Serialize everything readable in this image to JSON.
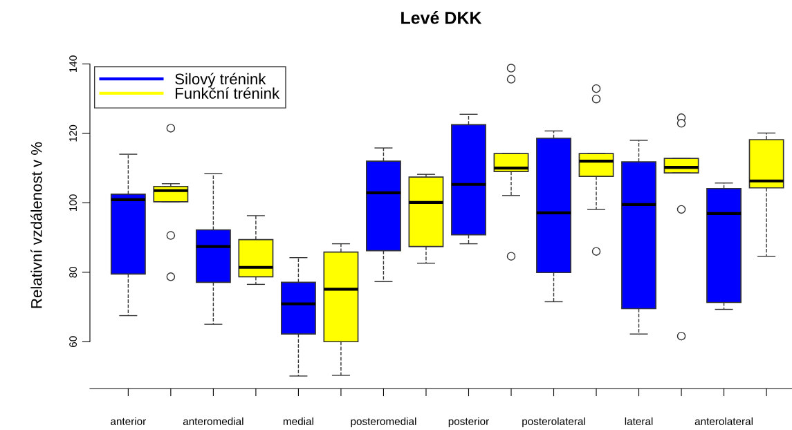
{
  "chart_data": {
    "type": "box",
    "title": "Levé DKK",
    "ylabel": "Relativní vzdálenost v %",
    "categories": [
      "anterior",
      null,
      "anteromedial",
      null,
      "medial",
      null,
      "posteromedial",
      null,
      "posterior",
      null,
      "posterolateral",
      null,
      "lateral",
      null,
      "anterolateral",
      null
    ],
    "ylim": [
      46.5,
      140.5
    ],
    "yticks": [
      60,
      80,
      100,
      120,
      140
    ],
    "grid": false,
    "legend": "top left",
    "line_style": "dashed",
    "series": [
      {
        "name": "Silový trénink",
        "color": "#0000ff",
        "boxes": [
          {
            "low": 67.5,
            "q1": 79.5,
            "median": 100.9,
            "q3": 102.5,
            "high": 114.0
          },
          null,
          {
            "low": 65.0,
            "q1": 77.1,
            "median": 87.4,
            "q3": 92.2,
            "high": 108.4
          },
          null,
          {
            "low": 50.1,
            "q1": 62.2,
            "median": 70.9,
            "q3": 77.1,
            "high": 84.2
          },
          null,
          {
            "low": 77.3,
            "q1": 86.2,
            "median": 102.9,
            "q3": 112.0,
            "high": 115.8
          },
          null,
          {
            "low": 88.2,
            "q1": 90.8,
            "median": 105.3,
            "q3": 122.5,
            "high": 125.5
          },
          null,
          {
            "low": 71.5,
            "q1": 79.9,
            "median": 97.1,
            "q3": 118.6,
            "high": 120.7
          },
          null,
          {
            "low": 62.2,
            "q1": 69.5,
            "median": 99.5,
            "q3": 111.8,
            "high": 118.0
          },
          null,
          {
            "low": 69.3,
            "q1": 71.3,
            "median": 96.9,
            "q3": 104.1,
            "high": 105.7
          },
          null
        ]
      },
      {
        "name": "Funkční trénink",
        "color": "#ffff00",
        "boxes": [
          null,
          {
            "low": 100.3,
            "q1": 100.3,
            "median": 103.5,
            "q3": 104.7,
            "high": 105.5,
            "outliers": [
              121.5,
              90.6,
              78.7
            ]
          },
          null,
          {
            "low": 76.5,
            "q1": 78.7,
            "median": 81.4,
            "q3": 89.4,
            "high": 96.3
          },
          null,
          {
            "low": 50.3,
            "q1": 60.0,
            "median": 75.1,
            "q3": 85.8,
            "high": 88.2
          },
          null,
          {
            "low": 82.6,
            "q1": 87.4,
            "median": 100.1,
            "q3": 107.4,
            "high": 108.2
          },
          null,
          {
            "low": 102.1,
            "q1": 109.0,
            "median": 110.0,
            "q3": 114.2,
            "high": 114.2,
            "outliers": [
              138.8,
              135.6,
              84.6
            ]
          },
          null,
          {
            "low": 98.1,
            "q1": 107.6,
            "median": 112.0,
            "q3": 114.2,
            "high": 114.2,
            "outliers": [
              132.9,
              129.9,
              86.0
            ]
          },
          null,
          {
            "low": 108.6,
            "q1": 108.6,
            "median": 110.2,
            "q3": 112.8,
            "high": 112.8,
            "outliers": [
              124.5,
              122.9,
              98.1,
              61.6
            ]
          },
          null,
          {
            "low": 84.6,
            "q1": 104.3,
            "median": 106.3,
            "q3": 118.2,
            "high": 120.1
          }
        ]
      }
    ]
  }
}
